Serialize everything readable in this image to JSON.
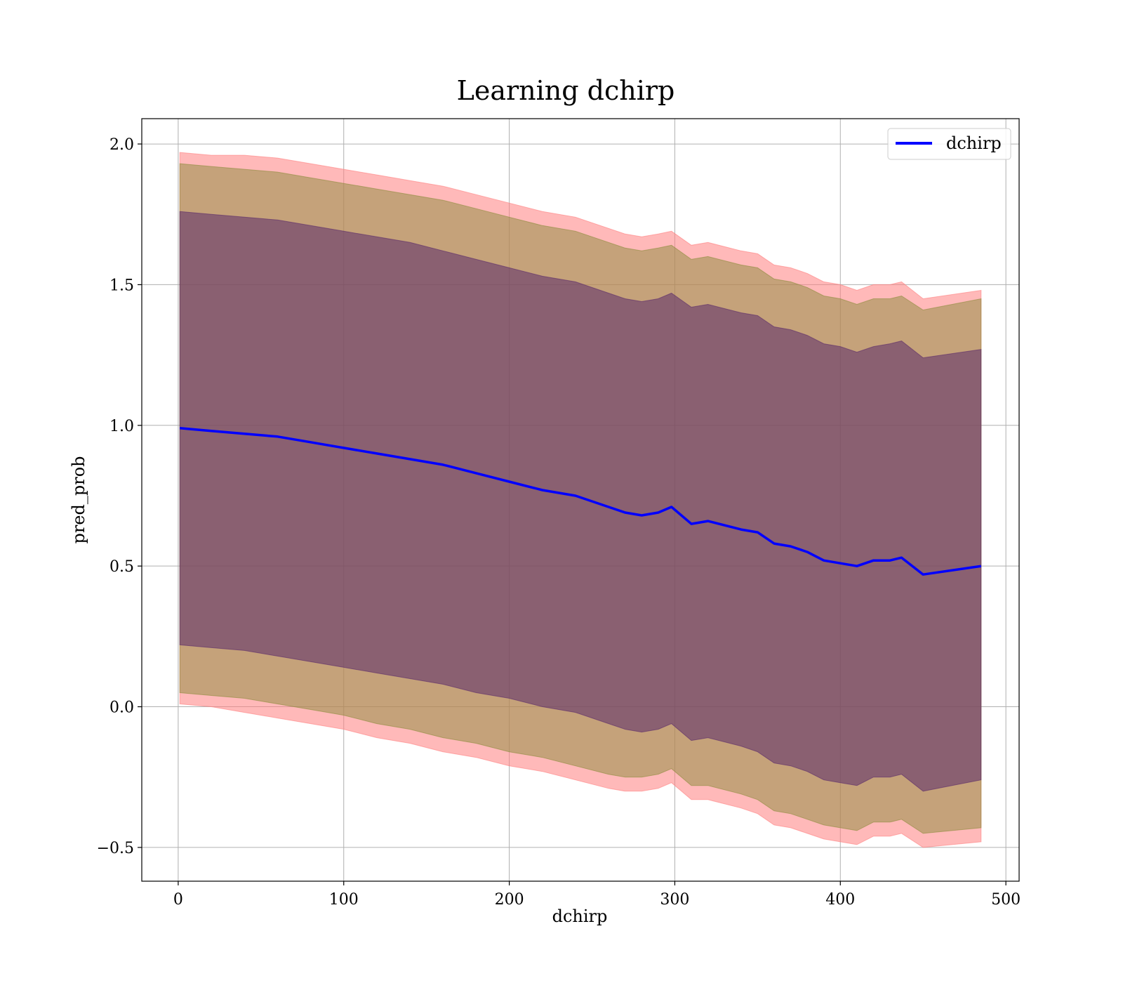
{
  "chart_data": {
    "type": "line",
    "title": "Learning dchirp",
    "xlabel": "dchirp",
    "ylabel": "pred_prob",
    "xlim": [
      -22,
      508
    ],
    "ylim": [
      -0.62,
      2.09
    ],
    "xticks": [
      0,
      100,
      200,
      300,
      400,
      500
    ],
    "xtick_labels": [
      "0",
      "100",
      "200",
      "300",
      "400",
      "500"
    ],
    "yticks": [
      -0.5,
      0.0,
      0.5,
      1.0,
      1.5,
      2.0
    ],
    "ytick_labels": [
      "−0.5",
      "0.0",
      "0.5",
      "1.0",
      "1.5",
      "2.0"
    ],
    "grid": true,
    "legend_position": "top-right",
    "series": [
      {
        "name": "dchirp",
        "color": "#0000ff",
        "x": [
          1,
          20,
          40,
          60,
          80,
          100,
          120,
          140,
          160,
          180,
          200,
          220,
          240,
          260,
          270,
          280,
          290,
          298,
          310,
          320,
          340,
          350,
          360,
          370,
          380,
          390,
          400,
          410,
          420,
          430,
          437,
          450,
          485
        ],
        "y": [
          0.99,
          0.98,
          0.97,
          0.96,
          0.94,
          0.92,
          0.9,
          0.88,
          0.86,
          0.83,
          0.8,
          0.77,
          0.75,
          0.71,
          0.69,
          0.68,
          0.69,
          0.71,
          0.65,
          0.66,
          0.63,
          0.62,
          0.58,
          0.57,
          0.55,
          0.52,
          0.51,
          0.5,
          0.52,
          0.52,
          0.53,
          0.47,
          0.5
        ]
      }
    ],
    "bands": [
      {
        "color": "#ff7f7f",
        "opacity": 0.55,
        "x": [
          1,
          20,
          40,
          60,
          80,
          100,
          120,
          140,
          160,
          180,
          200,
          220,
          240,
          260,
          270,
          280,
          290,
          298,
          310,
          320,
          340,
          350,
          360,
          370,
          380,
          390,
          400,
          410,
          420,
          430,
          437,
          450,
          485
        ],
        "upper": [
          1.97,
          1.96,
          1.96,
          1.95,
          1.93,
          1.91,
          1.89,
          1.87,
          1.85,
          1.82,
          1.79,
          1.76,
          1.74,
          1.7,
          1.68,
          1.67,
          1.68,
          1.69,
          1.64,
          1.65,
          1.62,
          1.61,
          1.57,
          1.56,
          1.54,
          1.51,
          1.5,
          1.48,
          1.5,
          1.5,
          1.51,
          1.45,
          1.48
        ],
        "lower": [
          0.01,
          0.0,
          -0.02,
          -0.04,
          -0.06,
          -0.08,
          -0.11,
          -0.13,
          -0.16,
          -0.18,
          -0.21,
          -0.23,
          -0.26,
          -0.29,
          -0.3,
          -0.3,
          -0.29,
          -0.27,
          -0.33,
          -0.33,
          -0.36,
          -0.38,
          -0.42,
          -0.43,
          -0.45,
          -0.47,
          -0.48,
          -0.49,
          -0.46,
          -0.46,
          -0.45,
          -0.5,
          -0.48
        ]
      },
      {
        "color": "#8c8c3c",
        "opacity": 0.5,
        "x": [
          1,
          20,
          40,
          60,
          80,
          100,
          120,
          140,
          160,
          180,
          200,
          220,
          240,
          260,
          270,
          280,
          290,
          298,
          310,
          320,
          340,
          350,
          360,
          370,
          380,
          390,
          400,
          410,
          420,
          430,
          437,
          450,
          485
        ],
        "upper": [
          1.93,
          1.92,
          1.91,
          1.9,
          1.88,
          1.86,
          1.84,
          1.82,
          1.8,
          1.77,
          1.74,
          1.71,
          1.69,
          1.65,
          1.63,
          1.62,
          1.63,
          1.64,
          1.59,
          1.6,
          1.57,
          1.56,
          1.52,
          1.51,
          1.49,
          1.46,
          1.45,
          1.43,
          1.45,
          1.45,
          1.46,
          1.41,
          1.45
        ],
        "lower": [
          0.05,
          0.04,
          0.03,
          0.01,
          -0.01,
          -0.03,
          -0.06,
          -0.08,
          -0.11,
          -0.13,
          -0.16,
          -0.18,
          -0.21,
          -0.24,
          -0.25,
          -0.25,
          -0.24,
          -0.22,
          -0.28,
          -0.28,
          -0.31,
          -0.33,
          -0.37,
          -0.38,
          -0.4,
          -0.42,
          -0.43,
          -0.44,
          -0.41,
          -0.41,
          -0.4,
          -0.45,
          -0.43
        ]
      },
      {
        "color": "#5a2a6a",
        "opacity": 0.55,
        "x": [
          1,
          20,
          40,
          60,
          80,
          100,
          120,
          140,
          160,
          180,
          200,
          220,
          240,
          260,
          270,
          280,
          290,
          298,
          310,
          320,
          340,
          350,
          360,
          370,
          380,
          390,
          400,
          410,
          420,
          430,
          437,
          450,
          485
        ],
        "upper": [
          1.76,
          1.75,
          1.74,
          1.73,
          1.71,
          1.69,
          1.67,
          1.65,
          1.62,
          1.59,
          1.56,
          1.53,
          1.51,
          1.47,
          1.45,
          1.44,
          1.45,
          1.47,
          1.42,
          1.43,
          1.4,
          1.39,
          1.35,
          1.34,
          1.32,
          1.29,
          1.28,
          1.26,
          1.28,
          1.29,
          1.3,
          1.24,
          1.27
        ],
        "lower": [
          0.22,
          0.21,
          0.2,
          0.18,
          0.16,
          0.14,
          0.12,
          0.1,
          0.08,
          0.05,
          0.03,
          0.0,
          -0.02,
          -0.06,
          -0.08,
          -0.09,
          -0.08,
          -0.06,
          -0.12,
          -0.11,
          -0.14,
          -0.16,
          -0.2,
          -0.21,
          -0.23,
          -0.26,
          -0.27,
          -0.28,
          -0.25,
          -0.25,
          -0.24,
          -0.3,
          -0.26
        ]
      }
    ]
  }
}
